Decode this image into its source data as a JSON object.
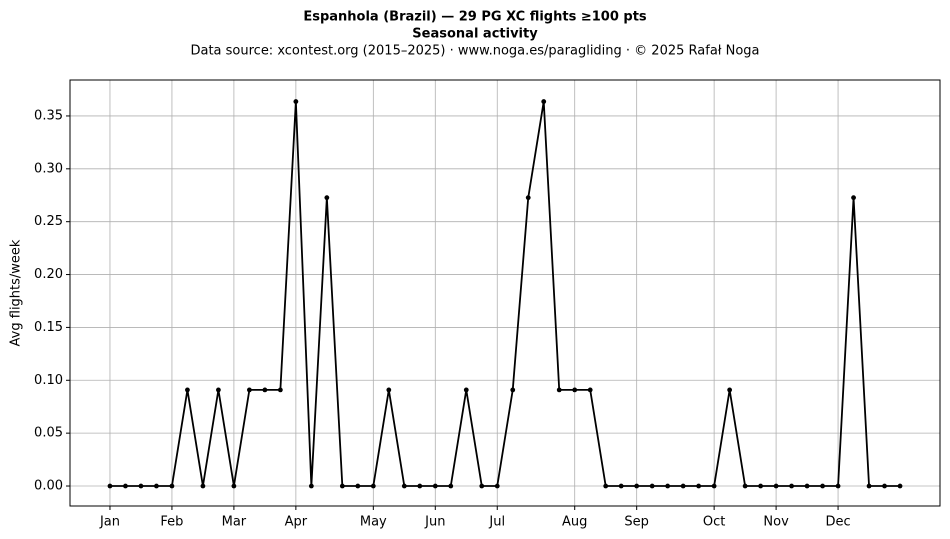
{
  "chart_data": {
    "type": "line",
    "title": "Espanhola (Brazil)  —  29 PG XC flights ≥100 pts",
    "subtitle": "Seasonal activity",
    "source": "Data source: xcontest.org (2015–2025)  ·  www.noga.es/paragliding  ·  © 2025 Rafał Noga",
    "y_label": "Avg flights/week",
    "x": [
      1,
      2,
      3,
      4,
      5,
      6,
      7,
      8,
      9,
      10,
      11,
      12,
      13,
      14,
      15,
      16,
      17,
      18,
      19,
      20,
      21,
      22,
      23,
      24,
      25,
      26,
      27,
      28,
      29,
      30,
      31,
      32,
      33,
      34,
      35,
      36,
      37,
      38,
      39,
      40,
      41,
      42,
      43,
      44,
      45,
      46,
      47,
      48,
      49,
      50,
      51,
      52
    ],
    "series": [
      {
        "name": "Avg flights/week",
        "color": "#000000",
        "values": [
          0,
          0,
          0,
          0,
          0,
          0.0909,
          0,
          0.0909,
          0,
          0.0909,
          0.0909,
          0.0909,
          0.3636,
          0,
          0.2727,
          0,
          0,
          0,
          0.0909,
          0,
          0,
          0,
          0,
          0.0909,
          0,
          0,
          0.0909,
          0.2727,
          0.3636,
          0.0909,
          0.0909,
          0.0909,
          0,
          0,
          0,
          0,
          0,
          0,
          0,
          0,
          0.0909,
          0,
          0,
          0,
          0,
          0,
          0,
          0,
          0.2727,
          0,
          0,
          0
        ]
      }
    ],
    "xlim": [
      -1.58,
      54.58
    ],
    "xticks": [
      {
        "value": 1,
        "label": "Jan"
      },
      {
        "value": 5,
        "label": "Feb"
      },
      {
        "value": 9,
        "label": "Mar"
      },
      {
        "value": 13,
        "label": "Apr"
      },
      {
        "value": 18,
        "label": "May"
      },
      {
        "value": 22,
        "label": "Jun"
      },
      {
        "value": 26,
        "label": "Jul"
      },
      {
        "value": 31,
        "label": "Aug"
      },
      {
        "value": 35,
        "label": "Sep"
      },
      {
        "value": 40,
        "label": "Oct"
      },
      {
        "value": 44,
        "label": "Nov"
      },
      {
        "value": 48,
        "label": "Dec"
      }
    ],
    "ylim": [
      -0.0189,
      0.384
    ],
    "yticks": [
      {
        "value": 0,
        "label": "0.00"
      },
      {
        "value": 0.05,
        "label": "0.05"
      },
      {
        "value": 0.1,
        "label": "0.10"
      },
      {
        "value": 0.15,
        "label": "0.15"
      },
      {
        "value": 0.2,
        "label": "0.20"
      },
      {
        "value": 0.25,
        "label": "0.25"
      },
      {
        "value": 0.3,
        "label": "0.30"
      },
      {
        "value": 0.35,
        "label": "0.35"
      }
    ],
    "grid": true
  }
}
